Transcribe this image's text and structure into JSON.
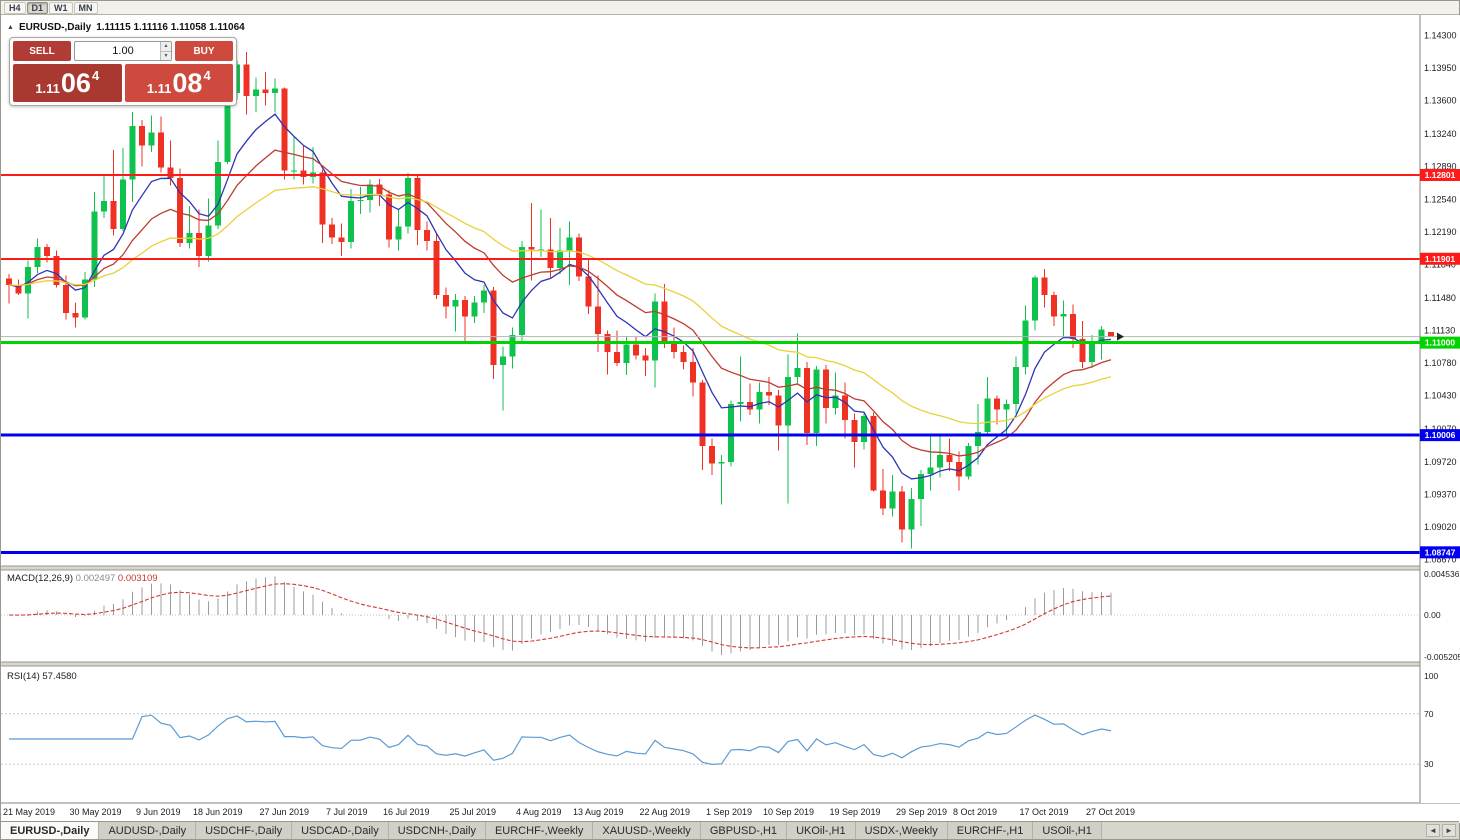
{
  "toolbar": {
    "timeframes": [
      "H4",
      "D1",
      "W1",
      "MN"
    ],
    "active_timeframe": "D1"
  },
  "quote_header": {
    "collapse_icon": "▲",
    "title": "EURUSD-,Daily",
    "ohlc": "1.11115 1.11116 1.11058 1.11064"
  },
  "trade_panel": {
    "sell_label": "SELL",
    "buy_label": "BUY",
    "volume": "1.00",
    "sell_price": {
      "head": "1.11",
      "big": "06",
      "sup": "4"
    },
    "buy_price": {
      "head": "1.11",
      "big": "08",
      "sup": "4"
    },
    "sell_color": "#a93830",
    "buy_color": "#cf4a3e"
  },
  "colors": {
    "up": "#0fc24e",
    "down": "#ef3124"
  },
  "chart_data": {
    "type": "candlestick",
    "symbol": "EURUSD-",
    "timeframe": "Daily",
    "title": "EURUSD- Daily candlestick chart with MACD and RSI",
    "price_range": [
      1.086,
      1.1452
    ],
    "current_price": 1.11064,
    "price_axis_labels": [
      "1.14300",
      "1.13950",
      "1.13600",
      "1.13240",
      "1.12890",
      "1.12540",
      "1.12190",
      "1.11840",
      "1.11480",
      "1.11130",
      "1.10780",
      "1.10430",
      "1.10070",
      "1.09720",
      "1.09370",
      "1.09020",
      "1.08670"
    ],
    "horizontal_lines": [
      {
        "price": 1.12801,
        "label": "1.12801",
        "color": "#ff1a1a",
        "width": 2
      },
      {
        "price": 1.11901,
        "label": "1.11901",
        "color": "#ff1a1a",
        "width": 2
      },
      {
        "price": 1.11,
        "label": "1.11000",
        "color": "#00d400",
        "width": 3
      },
      {
        "price": 1.10006,
        "label": "1.10006",
        "color": "#0000ee",
        "width": 3
      },
      {
        "price": 1.08747,
        "label": "1.08747",
        "color": "#0000ee",
        "width": 3
      }
    ],
    "moving_averages": [
      {
        "period": 8,
        "color": "#2d35b5"
      },
      {
        "period": 17,
        "color": "#bf3b32"
      },
      {
        "period": 34,
        "color": "#e8d23a"
      }
    ],
    "x_labels": [
      {
        "text": "21 May 2019",
        "index": 0
      },
      {
        "text": "30 May 2019",
        "index": 7
      },
      {
        "text": "9 Jun 2019",
        "index": 14
      },
      {
        "text": "18 Jun 2019",
        "index": 20
      },
      {
        "text": "27 Jun 2019",
        "index": 27
      },
      {
        "text": "7 Jul 2019",
        "index": 34
      },
      {
        "text": "16 Jul 2019",
        "index": 40
      },
      {
        "text": "25 Jul 2019",
        "index": 47
      },
      {
        "text": "4 Aug 2019",
        "index": 54
      },
      {
        "text": "13 Aug 2019",
        "index": 60
      },
      {
        "text": "22 Aug 2019",
        "index": 67
      },
      {
        "text": "1 Sep 2019",
        "index": 74
      },
      {
        "text": "10 Sep 2019",
        "index": 80
      },
      {
        "text": "19 Sep 2019",
        "index": 87
      },
      {
        "text": "29 Sep 2019",
        "index": 94
      },
      {
        "text": "8 Oct 2019",
        "index": 100
      },
      {
        "text": "17 Oct 2019",
        "index": 107
      },
      {
        "text": "27 Oct 2019",
        "index": 114
      }
    ],
    "candles": [
      [
        1.1169,
        1.1174,
        1.1142,
        1.1162
      ],
      [
        1.1162,
        1.1168,
        1.1151,
        1.1153
      ],
      [
        1.1153,
        1.1188,
        1.1126,
        1.1181
      ],
      [
        1.1181,
        1.1212,
        1.1175,
        1.1203
      ],
      [
        1.1203,
        1.1206,
        1.1186,
        1.1193
      ],
      [
        1.1193,
        1.1199,
        1.1159,
        1.1162
      ],
      [
        1.1162,
        1.1172,
        1.1125,
        1.1132
      ],
      [
        1.1132,
        1.1143,
        1.1116,
        1.1127
      ],
      [
        1.1127,
        1.1176,
        1.1125,
        1.1168
      ],
      [
        1.1168,
        1.1262,
        1.116,
        1.1241
      ],
      [
        1.1241,
        1.128,
        1.1234,
        1.1252
      ],
      [
        1.1252,
        1.1307,
        1.1215,
        1.1222
      ],
      [
        1.1222,
        1.1309,
        1.122,
        1.1275
      ],
      [
        1.1275,
        1.1348,
        1.1251,
        1.1333
      ],
      [
        1.1333,
        1.1339,
        1.1289,
        1.1312
      ],
      [
        1.1312,
        1.1344,
        1.1305,
        1.1326
      ],
      [
        1.1326,
        1.1343,
        1.1283,
        1.1288
      ],
      [
        1.1288,
        1.1317,
        1.1269,
        1.1277
      ],
      [
        1.1277,
        1.1287,
        1.1203,
        1.1207
      ],
      [
        1.1207,
        1.1247,
        1.1201,
        1.1218
      ],
      [
        1.1218,
        1.1243,
        1.1181,
        1.1193
      ],
      [
        1.1193,
        1.1255,
        1.1187,
        1.1226
      ],
      [
        1.1226,
        1.1317,
        1.1222,
        1.1294
      ],
      [
        1.1294,
        1.1378,
        1.1292,
        1.1368
      ],
      [
        1.1368,
        1.1403,
        1.1361,
        1.1399
      ],
      [
        1.1399,
        1.1412,
        1.1345,
        1.1365
      ],
      [
        1.1365,
        1.1385,
        1.1348,
        1.1372
      ],
      [
        1.1372,
        1.1391,
        1.1355,
        1.1368
      ],
      [
        1.1368,
        1.1384,
        1.1347,
        1.1373
      ],
      [
        1.1373,
        1.1374,
        1.1275,
        1.1285
      ],
      [
        1.1285,
        1.1322,
        1.1275,
        1.1285
      ],
      [
        1.1285,
        1.1312,
        1.127,
        1.1278
      ],
      [
        1.1278,
        1.131,
        1.1271,
        1.1283
      ],
      [
        1.1283,
        1.1286,
        1.1207,
        1.1227
      ],
      [
        1.1227,
        1.1234,
        1.1206,
        1.1213
      ],
      [
        1.1213,
        1.1228,
        1.1193,
        1.1208
      ],
      [
        1.1208,
        1.1265,
        1.1201,
        1.1252
      ],
      [
        1.1252,
        1.1267,
        1.1238,
        1.1253
      ],
      [
        1.1253,
        1.1275,
        1.124,
        1.127
      ],
      [
        1.127,
        1.1276,
        1.1247,
        1.1259
      ],
      [
        1.1259,
        1.1264,
        1.1202,
        1.1211
      ],
      [
        1.1211,
        1.1243,
        1.1199,
        1.1225
      ],
      [
        1.1225,
        1.1282,
        1.1217,
        1.1277
      ],
      [
        1.1277,
        1.1279,
        1.1205,
        1.1221
      ],
      [
        1.1221,
        1.123,
        1.1199,
        1.1209
      ],
      [
        1.1209,
        1.1217,
        1.1147,
        1.1151
      ],
      [
        1.1151,
        1.1159,
        1.1126,
        1.1139
      ],
      [
        1.1139,
        1.1152,
        1.1112,
        1.1146
      ],
      [
        1.1146,
        1.115,
        1.1101,
        1.1128
      ],
      [
        1.1128,
        1.115,
        1.1121,
        1.1143
      ],
      [
        1.1143,
        1.1162,
        1.1132,
        1.1156
      ],
      [
        1.1156,
        1.116,
        1.1061,
        1.1076
      ],
      [
        1.1076,
        1.1096,
        1.1027,
        1.1085
      ],
      [
        1.1085,
        1.1116,
        1.1072,
        1.1108
      ],
      [
        1.1108,
        1.1209,
        1.1101,
        1.1203
      ],
      [
        1.1203,
        1.125,
        1.1167,
        1.12
      ],
      [
        1.12,
        1.1243,
        1.1192,
        1.12
      ],
      [
        1.12,
        1.1234,
        1.117,
        1.118
      ],
      [
        1.118,
        1.1223,
        1.1174,
        1.1199
      ],
      [
        1.1199,
        1.123,
        1.1162,
        1.1213
      ],
      [
        1.1213,
        1.1217,
        1.1166,
        1.1171
      ],
      [
        1.1171,
        1.119,
        1.1131,
        1.1139
      ],
      [
        1.1139,
        1.1172,
        1.109,
        1.1109
      ],
      [
        1.1109,
        1.1113,
        1.1066,
        1.109
      ],
      [
        1.109,
        1.1113,
        1.1075,
        1.1078
      ],
      [
        1.1078,
        1.1107,
        1.1065,
        1.1098
      ],
      [
        1.1098,
        1.1106,
        1.1082,
        1.1086
      ],
      [
        1.1086,
        1.1094,
        1.1064,
        1.1081
      ],
      [
        1.1081,
        1.1153,
        1.1052,
        1.1144
      ],
      [
        1.1144,
        1.1163,
        1.1094,
        1.1101
      ],
      [
        1.1101,
        1.1116,
        1.1083,
        1.109
      ],
      [
        1.109,
        1.1097,
        1.1071,
        1.1079
      ],
      [
        1.1079,
        1.1094,
        1.1042,
        1.1057
      ],
      [
        1.1057,
        1.106,
        1.0963,
        1.0989
      ],
      [
        1.0989,
        1.0997,
        1.0958,
        1.097
      ],
      [
        1.097,
        1.0979,
        1.0926,
        1.0972
      ],
      [
        1.0972,
        1.1038,
        1.0967,
        1.1034
      ],
      [
        1.1034,
        1.1085,
        1.1015,
        1.1036
      ],
      [
        1.1036,
        1.1056,
        1.1022,
        1.1028
      ],
      [
        1.1028,
        1.1057,
        1.1013,
        1.1047
      ],
      [
        1.1047,
        1.1063,
        1.1033,
        1.1043
      ],
      [
        1.1043,
        1.1049,
        1.0984,
        1.1011
      ],
      [
        1.1011,
        1.1087,
        1.0927,
        1.1063
      ],
      [
        1.1063,
        1.111,
        1.1056,
        1.1073
      ],
      [
        1.1073,
        1.1079,
        1.099,
        1.1003
      ],
      [
        1.1003,
        1.1075,
        1.0989,
        1.1071
      ],
      [
        1.1071,
        1.1076,
        1.1013,
        1.103
      ],
      [
        1.103,
        1.1068,
        1.1023,
        1.1043
      ],
      [
        1.1043,
        1.1057,
        1.0997,
        1.1017
      ],
      [
        1.1017,
        1.1024,
        1.0966,
        1.0993
      ],
      [
        1.0993,
        1.1024,
        1.0985,
        1.1021
      ],
      [
        1.1021,
        1.1025,
        1.094,
        1.0941
      ],
      [
        1.0941,
        1.0964,
        1.0915,
        1.0922
      ],
      [
        1.0922,
        1.0958,
        1.0913,
        1.094
      ],
      [
        1.094,
        1.0946,
        1.0885,
        1.0899
      ],
      [
        1.0899,
        1.0944,
        1.0879,
        1.0932
      ],
      [
        1.0932,
        1.0963,
        1.0903,
        1.0959
      ],
      [
        1.0959,
        1.0999,
        1.0941,
        1.0966
      ],
      [
        1.0966,
        1.0999,
        1.0955,
        1.0979
      ],
      [
        1.0979,
        1.0997,
        1.0962,
        1.0972
      ],
      [
        1.0972,
        1.0983,
        1.0941,
        1.0956
      ],
      [
        1.0956,
        1.0992,
        1.0953,
        1.0989
      ],
      [
        1.0989,
        1.1034,
        1.0969,
        1.1004
      ],
      [
        1.1004,
        1.1063,
        1.1002,
        1.104
      ],
      [
        1.104,
        1.1043,
        1.1012,
        1.1028
      ],
      [
        1.1028,
        1.1039,
        1.1,
        1.1034
      ],
      [
        1.1034,
        1.1085,
        1.1024,
        1.1074
      ],
      [
        1.1074,
        1.114,
        1.1066,
        1.1124
      ],
      [
        1.1124,
        1.1172,
        1.1113,
        1.117
      ],
      [
        1.117,
        1.1179,
        1.1138,
        1.1151
      ],
      [
        1.1151,
        1.1155,
        1.1118,
        1.1128
      ],
      [
        1.1128,
        1.1145,
        1.1106,
        1.1131
      ],
      [
        1.1131,
        1.1141,
        1.1094,
        1.1104
      ],
      [
        1.1104,
        1.1123,
        1.1073,
        1.1079
      ],
      [
        1.1079,
        1.1108,
        1.1073,
        1.1099
      ],
      [
        1.1099,
        1.1118,
        1.1082,
        1.1114
      ],
      [
        1.11115,
        1.11116,
        1.11058,
        1.11064
      ]
    ]
  },
  "macd_panel": {
    "label": "MACD(12,26,9)",
    "value_main": "0.002497",
    "value_signal": "0.003109",
    "axis_labels": [
      "0.004536",
      "0.00",
      "-0.005205"
    ],
    "fast": 12,
    "slow": 26,
    "signal": 9,
    "hist_color": "#9c9c9c",
    "signal_color": "#d03a30"
  },
  "rsi_panel": {
    "label": "RSI(14)",
    "value": "57.4580",
    "period": 14,
    "axis_labels": [
      "100",
      "70",
      "30"
    ],
    "levels": [
      70,
      30
    ],
    "line_color": "#5b9bd5"
  },
  "tabs": {
    "items": [
      {
        "label": "EURUSD-,Daily",
        "active": true
      },
      {
        "label": "AUDUSD-,Daily",
        "active": false
      },
      {
        "label": "USDCHF-,Daily",
        "active": false
      },
      {
        "label": "USDCAD-,Daily",
        "active": false
      },
      {
        "label": "USDCNH-,Daily",
        "active": false
      },
      {
        "label": "EURCHF-,Weekly",
        "active": false
      },
      {
        "label": "XAUUSD-,Weekly",
        "active": false
      },
      {
        "label": "GBPUSD-,H1",
        "active": false
      },
      {
        "label": "UKOil-,H1",
        "active": false
      },
      {
        "label": "USDX-,Weekly",
        "active": false
      },
      {
        "label": "EURCHF-,H1",
        "active": false
      },
      {
        "label": "USOil-,H1",
        "active": false
      }
    ],
    "scroll_left": "◄",
    "scroll_right": "►"
  }
}
